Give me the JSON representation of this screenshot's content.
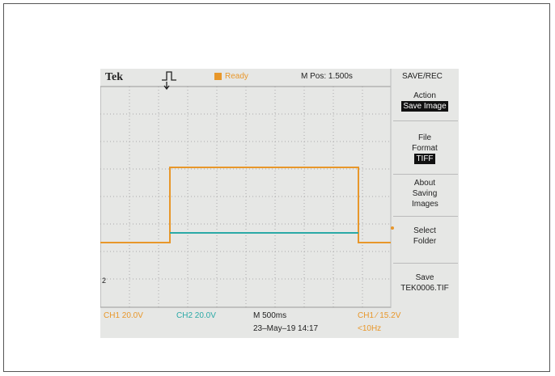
{
  "header": {
    "brand": "Tek",
    "status": "Ready",
    "position": "M Pos: 1.500s",
    "menu_title": "SAVE/REC"
  },
  "menu": [
    {
      "label": "Action",
      "value": "Save Image"
    },
    {
      "label": "File Format",
      "value": "TIFF"
    },
    {
      "label": "About Saving Images"
    },
    {
      "label": "Select Folder"
    },
    {
      "label": "Save",
      "value": "TEK0006.TIF"
    }
  ],
  "footer": {
    "ch1": "CH1 20.0V",
    "ch2": "CH2 20.0V",
    "timebase": "M 500ms",
    "datetime": "23–May–19 14:17",
    "trigger": "CH1 ∕ 15.2V",
    "frequency": "<10Hz"
  },
  "markers": {
    "ch2": "2"
  }
}
